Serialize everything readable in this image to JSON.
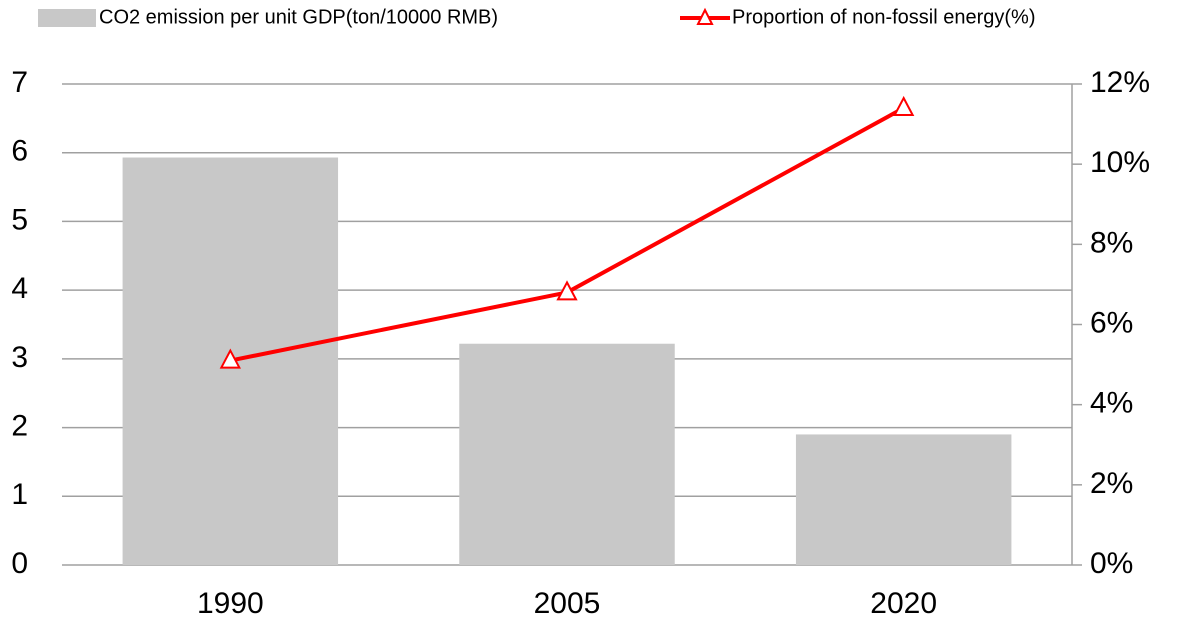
{
  "chart_data": {
    "type": "bar",
    "categories": [
      "1990",
      "2005",
      "2020"
    ],
    "series": [
      {
        "name": "CO2 emission per unit GDP(ton/10000 RMB)",
        "type": "bar",
        "color": "#c8c8c8",
        "axis": "y",
        "values": [
          5.93,
          3.22,
          1.9
        ]
      },
      {
        "name": "Proportion of non-fossil energy(%)",
        "type": "line",
        "color": "#ff0000",
        "axis": "y2",
        "values": [
          5.1,
          6.8,
          11.4
        ]
      }
    ],
    "ylim": [
      0,
      7
    ],
    "yticks": [
      0,
      1,
      2,
      3,
      4,
      5,
      6,
      7
    ],
    "y2lim": [
      0,
      12
    ],
    "y2ticks": [
      {
        "value": 0,
        "label": "0%"
      },
      {
        "value": 2,
        "label": "2%"
      },
      {
        "value": 4,
        "label": "4%"
      },
      {
        "value": 6,
        "label": "6%"
      },
      {
        "value": 8,
        "label": "8%"
      },
      {
        "value": 10,
        "label": "10%"
      },
      {
        "value": 12,
        "label": "12%"
      }
    ],
    "grid": true,
    "legend": "top"
  }
}
